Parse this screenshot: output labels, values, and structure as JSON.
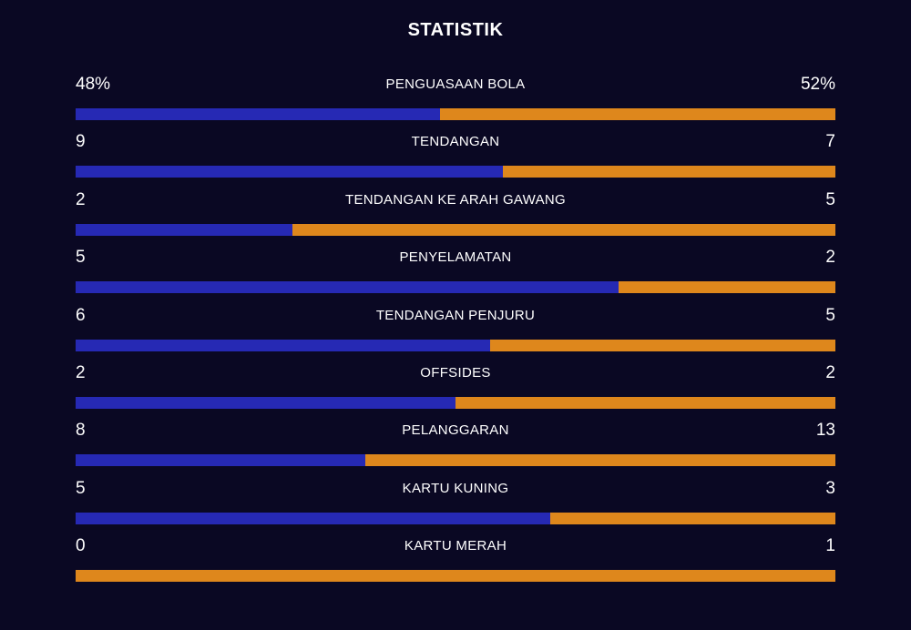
{
  "title": "STATISTIK",
  "colors": {
    "background": "#0a0823",
    "home_bar": "#2629b4",
    "away_bar": "#de871c"
  },
  "stats": [
    {
      "label": "PENGUASAAN BOLA",
      "home": "48%",
      "away": "52%",
      "home_share": 0.48
    },
    {
      "label": "TENDANGAN",
      "home": "9",
      "away": "7",
      "home_share": 0.5625
    },
    {
      "label": "TENDANGAN KE ARAH GAWANG",
      "home": "2",
      "away": "5",
      "home_share": 0.2857
    },
    {
      "label": "PENYELAMATAN",
      "home": "5",
      "away": "2",
      "home_share": 0.7143
    },
    {
      "label": "TENDANGAN PENJURU",
      "home": "6",
      "away": "5",
      "home_share": 0.5455
    },
    {
      "label": "OFFSIDES",
      "home": "2",
      "away": "2",
      "home_share": 0.5
    },
    {
      "label": "PELANGGARAN",
      "home": "8",
      "away": "13",
      "home_share": 0.381
    },
    {
      "label": "KARTU KUNING",
      "home": "5",
      "away": "3",
      "home_share": 0.625
    },
    {
      "label": "KARTU MERAH",
      "home": "0",
      "away": "1",
      "home_share": 0.0
    }
  ]
}
